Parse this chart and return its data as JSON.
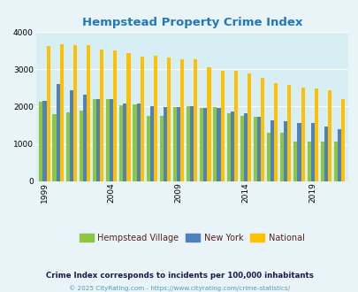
{
  "title": "Hempstead Property Crime Index",
  "title_color": "#2277bb",
  "years": [
    1999,
    2000,
    2001,
    2002,
    2003,
    2004,
    2005,
    2006,
    2007,
    2008,
    2009,
    2010,
    2011,
    2012,
    2013,
    2014,
    2015,
    2016,
    2017,
    2018,
    2019,
    2020,
    2021
  ],
  "hempstead": [
    2120,
    1800,
    1850,
    1880,
    2200,
    2200,
    2040,
    2050,
    1750,
    1760,
    1990,
    2020,
    1960,
    1990,
    1820,
    1750,
    1720,
    1300,
    1300,
    1060,
    1060,
    1060,
    1060
  ],
  "new_york": [
    2150,
    2600,
    2440,
    2330,
    2190,
    2200,
    2090,
    2080,
    2010,
    1990,
    1990,
    2010,
    1970,
    1960,
    1870,
    1820,
    1730,
    1620,
    1600,
    1570,
    1560,
    1470,
    1390
  ],
  "national": [
    3620,
    3670,
    3640,
    3640,
    3520,
    3510,
    3440,
    3350,
    3360,
    3310,
    3260,
    3260,
    3050,
    2970,
    2950,
    2900,
    2780,
    2620,
    2570,
    2500,
    2480,
    2440,
    2190
  ],
  "hempstead_color": "#8dc63f",
  "new_york_color": "#4f81bd",
  "national_color": "#ffc000",
  "bg_color": "#e8f4f8",
  "plot_bg": "#d8eef5",
  "ylim": [
    0,
    4000
  ],
  "yticks": [
    0,
    1000,
    2000,
    3000,
    4000
  ],
  "xlabel_ticks": [
    1999,
    2004,
    2009,
    2014,
    2019
  ],
  "subtitle": "Crime Index corresponds to incidents per 100,000 inhabitants",
  "subtitle_color": "#1a1a4e",
  "copyright": "© 2025 CityRating.com - https://www.cityrating.com/crime-statistics/",
  "copyright_color": "#5599bb",
  "legend_labels": [
    "Hempstead Village",
    "New York",
    "National"
  ],
  "legend_text_color": "#552222"
}
